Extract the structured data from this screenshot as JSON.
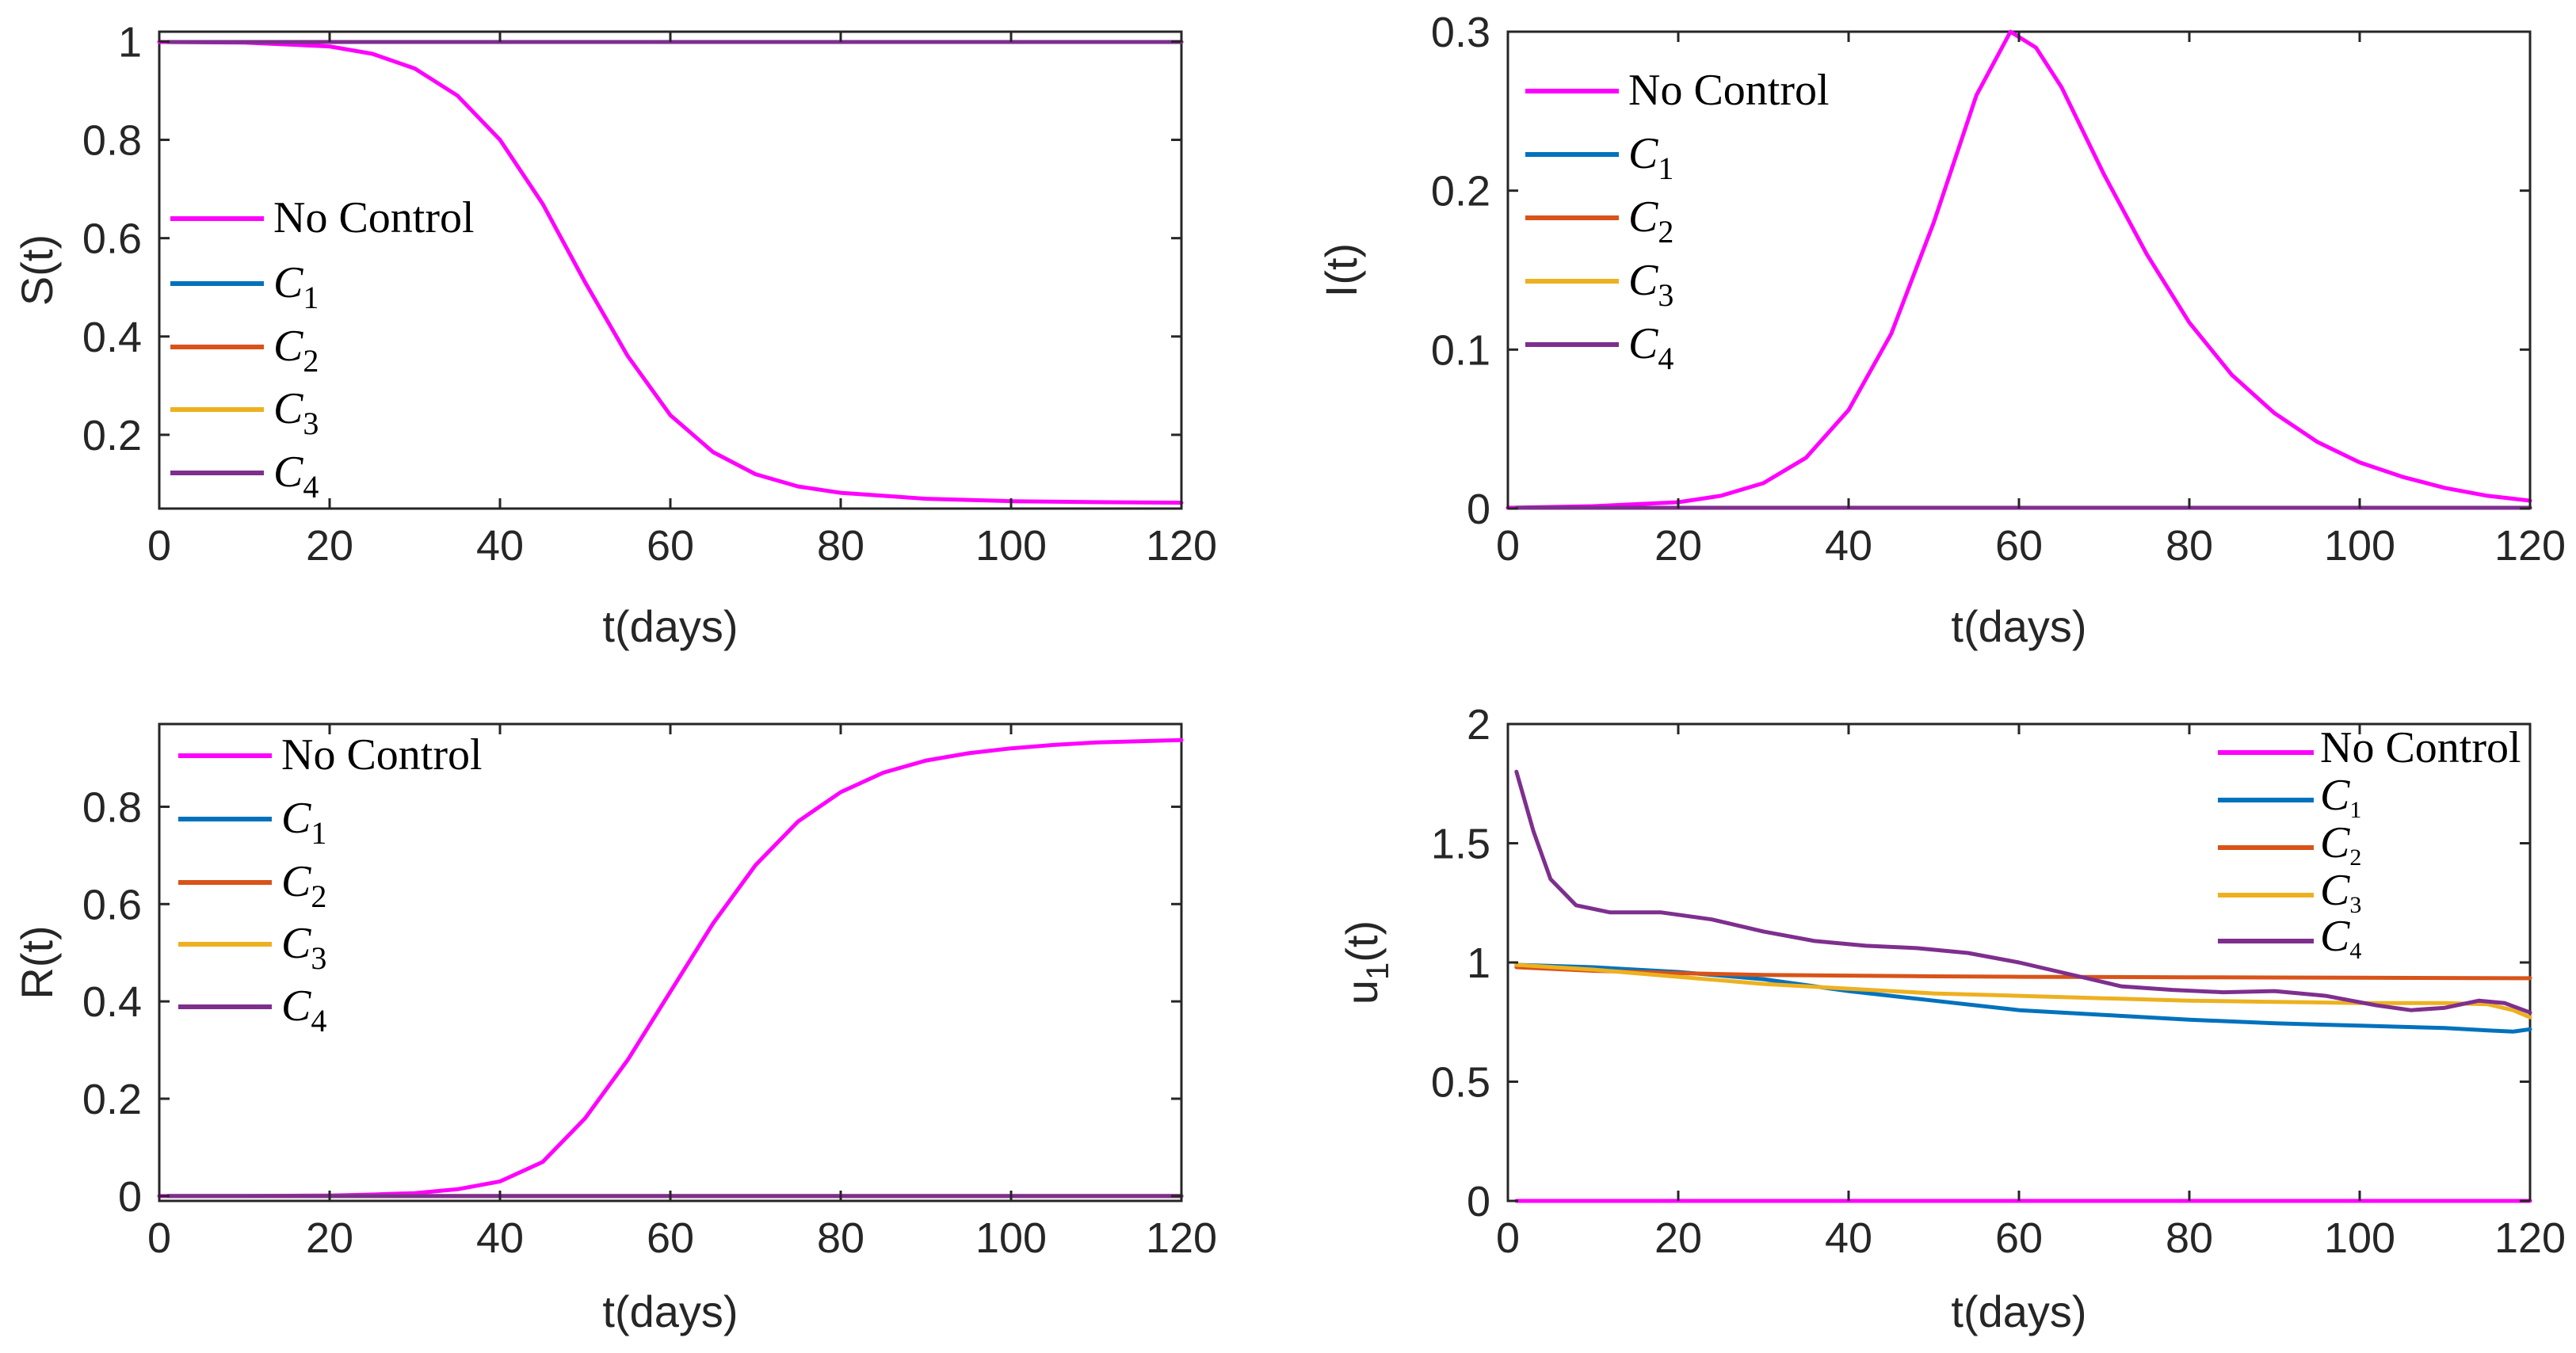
{
  "chart_data": [
    {
      "type": "line",
      "ylabel": "S(t)",
      "xlabel": "t(days)",
      "xlim": [
        0,
        120
      ],
      "ylim": [
        0.05,
        1.02
      ],
      "xticks": [
        "0",
        "20",
        "40",
        "60",
        "80",
        "100",
        "120"
      ],
      "xtick_values": [
        0,
        20,
        40,
        60,
        80,
        100,
        120
      ],
      "yticks": [
        "0.2",
        "0.4",
        "0.6",
        "0.8",
        "1"
      ],
      "ytick_values": [
        0.2,
        0.4,
        0.6,
        0.8,
        1.0
      ],
      "legend_position": "center-left",
      "legend": [
        {
          "name": "No Control",
          "base": "No Control",
          "sub": ""
        },
        {
          "name": "C1",
          "base": "C",
          "sub": "1"
        },
        {
          "name": "C2",
          "base": "C",
          "sub": "2"
        },
        {
          "name": "C3",
          "base": "C",
          "sub": "3"
        },
        {
          "name": "C4",
          "base": "C",
          "sub": "4"
        }
      ],
      "series": [
        {
          "name": "No Control",
          "color": "#FF00FF",
          "x": [
            0,
            10,
            20,
            25,
            30,
            35,
            40,
            45,
            50,
            55,
            60,
            65,
            70,
            75,
            80,
            90,
            100,
            110,
            120
          ],
          "y": [
            0.999,
            0.998,
            0.99,
            0.975,
            0.945,
            0.89,
            0.8,
            0.67,
            0.51,
            0.36,
            0.24,
            0.165,
            0.12,
            0.095,
            0.082,
            0.07,
            0.065,
            0.063,
            0.062
          ]
        },
        {
          "name": "C1",
          "color": "#0072BD",
          "x": [
            1,
            120
          ],
          "y": [
            0.999,
            0.999
          ]
        },
        {
          "name": "C2",
          "color": "#D95319",
          "x": [
            1,
            120
          ],
          "y": [
            0.999,
            0.999
          ]
        },
        {
          "name": "C3",
          "color": "#EDB120",
          "x": [
            1,
            120
          ],
          "y": [
            0.999,
            0.999
          ]
        },
        {
          "name": "C4",
          "color": "#7E2F8E",
          "x": [
            1,
            120
          ],
          "y": [
            0.999,
            0.999
          ]
        }
      ]
    },
    {
      "type": "line",
      "ylabel": "I(t)",
      "xlabel": "t(days)",
      "xlim": [
        0,
        120
      ],
      "ylim": [
        0,
        0.3
      ],
      "xticks": [
        "0",
        "20",
        "40",
        "60",
        "80",
        "100",
        "120"
      ],
      "xtick_values": [
        0,
        20,
        40,
        60,
        80,
        100,
        120
      ],
      "yticks": [
        "0",
        "0.1",
        "0.2",
        "0.3"
      ],
      "ytick_values": [
        0,
        0.1,
        0.2,
        0.3
      ],
      "legend_position": "top-left",
      "legend": [
        {
          "name": "No Control",
          "base": "No Control",
          "sub": ""
        },
        {
          "name": "C1",
          "base": "C",
          "sub": "1"
        },
        {
          "name": "C2",
          "base": "C",
          "sub": "2"
        },
        {
          "name": "C3",
          "base": "C",
          "sub": "3"
        },
        {
          "name": "C4",
          "base": "C",
          "sub": "4"
        }
      ],
      "series": [
        {
          "name": "No Control",
          "color": "#FF00FF",
          "x": [
            0,
            10,
            20,
            25,
            30,
            35,
            40,
            45,
            50,
            55,
            59,
            62,
            65,
            70,
            75,
            80,
            85,
            90,
            95,
            100,
            105,
            110,
            115,
            120
          ],
          "y": [
            0.0005,
            0.0015,
            0.004,
            0.008,
            0.016,
            0.032,
            0.062,
            0.11,
            0.18,
            0.26,
            0.3,
            0.29,
            0.265,
            0.21,
            0.16,
            0.117,
            0.084,
            0.06,
            0.042,
            0.029,
            0.02,
            0.013,
            0.008,
            0.005
          ]
        },
        {
          "name": "C1",
          "color": "#0072BD",
          "x": [
            1,
            120
          ],
          "y": [
            0.0005,
            0.0005
          ]
        },
        {
          "name": "C2",
          "color": "#D95319",
          "x": [
            1,
            120
          ],
          "y": [
            0.0005,
            0.0005
          ]
        },
        {
          "name": "C3",
          "color": "#EDB120",
          "x": [
            1,
            120
          ],
          "y": [
            0.0005,
            0.0005
          ]
        },
        {
          "name": "C4",
          "color": "#7E2F8E",
          "x": [
            1,
            120
          ],
          "y": [
            0.0005,
            0.0005
          ]
        }
      ]
    },
    {
      "type": "line",
      "ylabel": "R(t)",
      "xlabel": "t(days)",
      "xlim": [
        0,
        120
      ],
      "ylim": [
        -0.01,
        0.97
      ],
      "xticks": [
        "0",
        "20",
        "40",
        "60",
        "80",
        "100",
        "120"
      ],
      "xtick_values": [
        0,
        20,
        40,
        60,
        80,
        100,
        120
      ],
      "yticks": [
        "0",
        "0.2",
        "0.4",
        "0.6",
        "0.8"
      ],
      "ytick_values": [
        0,
        0.2,
        0.4,
        0.6,
        0.8
      ],
      "legend_position": "top-left",
      "legend": [
        {
          "name": "No Control",
          "base": "No Control",
          "sub": ""
        },
        {
          "name": "C1",
          "base": "C",
          "sub": "1"
        },
        {
          "name": "C2",
          "base": "C",
          "sub": "2"
        },
        {
          "name": "C3",
          "base": "C",
          "sub": "3"
        },
        {
          "name": "C4",
          "base": "C",
          "sub": "4"
        }
      ],
      "series": [
        {
          "name": "No Control",
          "color": "#FF00FF",
          "x": [
            0,
            10,
            20,
            25,
            30,
            35,
            40,
            45,
            50,
            55,
            60,
            65,
            70,
            75,
            80,
            85,
            90,
            95,
            100,
            105,
            110,
            120
          ],
          "y": [
            0.0,
            0.0,
            0.001,
            0.003,
            0.006,
            0.014,
            0.03,
            0.07,
            0.16,
            0.28,
            0.42,
            0.56,
            0.68,
            0.77,
            0.83,
            0.87,
            0.895,
            0.91,
            0.92,
            0.927,
            0.932,
            0.937
          ]
        },
        {
          "name": "C1",
          "color": "#0072BD",
          "x": [
            1,
            120
          ],
          "y": [
            0.0,
            0.0
          ]
        },
        {
          "name": "C2",
          "color": "#D95319",
          "x": [
            1,
            120
          ],
          "y": [
            0.0,
            0.0
          ]
        },
        {
          "name": "C3",
          "color": "#EDB120",
          "x": [
            1,
            120
          ],
          "y": [
            0.0,
            0.0
          ]
        },
        {
          "name": "C4",
          "color": "#7E2F8E",
          "x": [
            1,
            120
          ],
          "y": [
            0.0,
            0.0
          ]
        }
      ]
    },
    {
      "type": "line",
      "ylabel": "u",
      "ylabel_sub": "1",
      "ylabel_suffix": "(t)",
      "xlabel": "t(days)",
      "xlim": [
        0,
        120
      ],
      "ylim": [
        0,
        2
      ],
      "xticks": [
        "0",
        "20",
        "40",
        "60",
        "80",
        "100",
        "120"
      ],
      "xtick_values": [
        0,
        20,
        40,
        60,
        80,
        100,
        120
      ],
      "yticks": [
        "0",
        "0.5",
        "1",
        "1.5",
        "2"
      ],
      "ytick_values": [
        0,
        0.5,
        1,
        1.5,
        2
      ],
      "legend_position": "top-right",
      "legend": [
        {
          "name": "No Control",
          "base": "No Control",
          "sub": ""
        },
        {
          "name": "C1",
          "base": "C",
          "sub": "1"
        },
        {
          "name": "C2",
          "base": "C",
          "sub": "2"
        },
        {
          "name": "C3",
          "base": "C",
          "sub": "3"
        },
        {
          "name": "C4",
          "base": "C",
          "sub": "4"
        }
      ],
      "series": [
        {
          "name": "No Control",
          "color": "#FF00FF",
          "x": [
            1,
            120
          ],
          "y": [
            0,
            0
          ]
        },
        {
          "name": "C1",
          "color": "#0072BD",
          "x": [
            1,
            10,
            20,
            30,
            40,
            50,
            60,
            70,
            80,
            90,
            100,
            110,
            115,
            118,
            120
          ],
          "y": [
            0.99,
            0.98,
            0.96,
            0.93,
            0.88,
            0.84,
            0.8,
            0.78,
            0.76,
            0.745,
            0.735,
            0.725,
            0.715,
            0.71,
            0.72
          ]
        },
        {
          "name": "C2",
          "color": "#D95319",
          "x": [
            1,
            10,
            20,
            30,
            40,
            50,
            60,
            70,
            80,
            90,
            100,
            110,
            120
          ],
          "y": [
            0.98,
            0.965,
            0.955,
            0.948,
            0.945,
            0.942,
            0.94,
            0.939,
            0.938,
            0.937,
            0.936,
            0.935,
            0.934
          ]
        },
        {
          "name": "C3",
          "color": "#EDB120",
          "x": [
            1,
            10,
            20,
            30,
            40,
            50,
            60,
            70,
            80,
            90,
            100,
            110,
            115,
            118,
            120
          ],
          "y": [
            0.99,
            0.97,
            0.94,
            0.91,
            0.89,
            0.87,
            0.86,
            0.85,
            0.84,
            0.835,
            0.83,
            0.83,
            0.825,
            0.8,
            0.77
          ]
        },
        {
          "name": "C4",
          "color": "#7E2F8E",
          "x": [
            1,
            3,
            5,
            8,
            12,
            18,
            24,
            30,
            36,
            42,
            48,
            54,
            60,
            66,
            72,
            78,
            84,
            90,
            96,
            102,
            106,
            110,
            114,
            117,
            120
          ],
          "y": [
            1.8,
            1.55,
            1.35,
            1.24,
            1.21,
            1.21,
            1.18,
            1.13,
            1.09,
            1.07,
            1.06,
            1.04,
            1.0,
            0.95,
            0.9,
            0.885,
            0.875,
            0.88,
            0.86,
            0.82,
            0.8,
            0.81,
            0.84,
            0.83,
            0.79
          ]
        }
      ]
    }
  ]
}
